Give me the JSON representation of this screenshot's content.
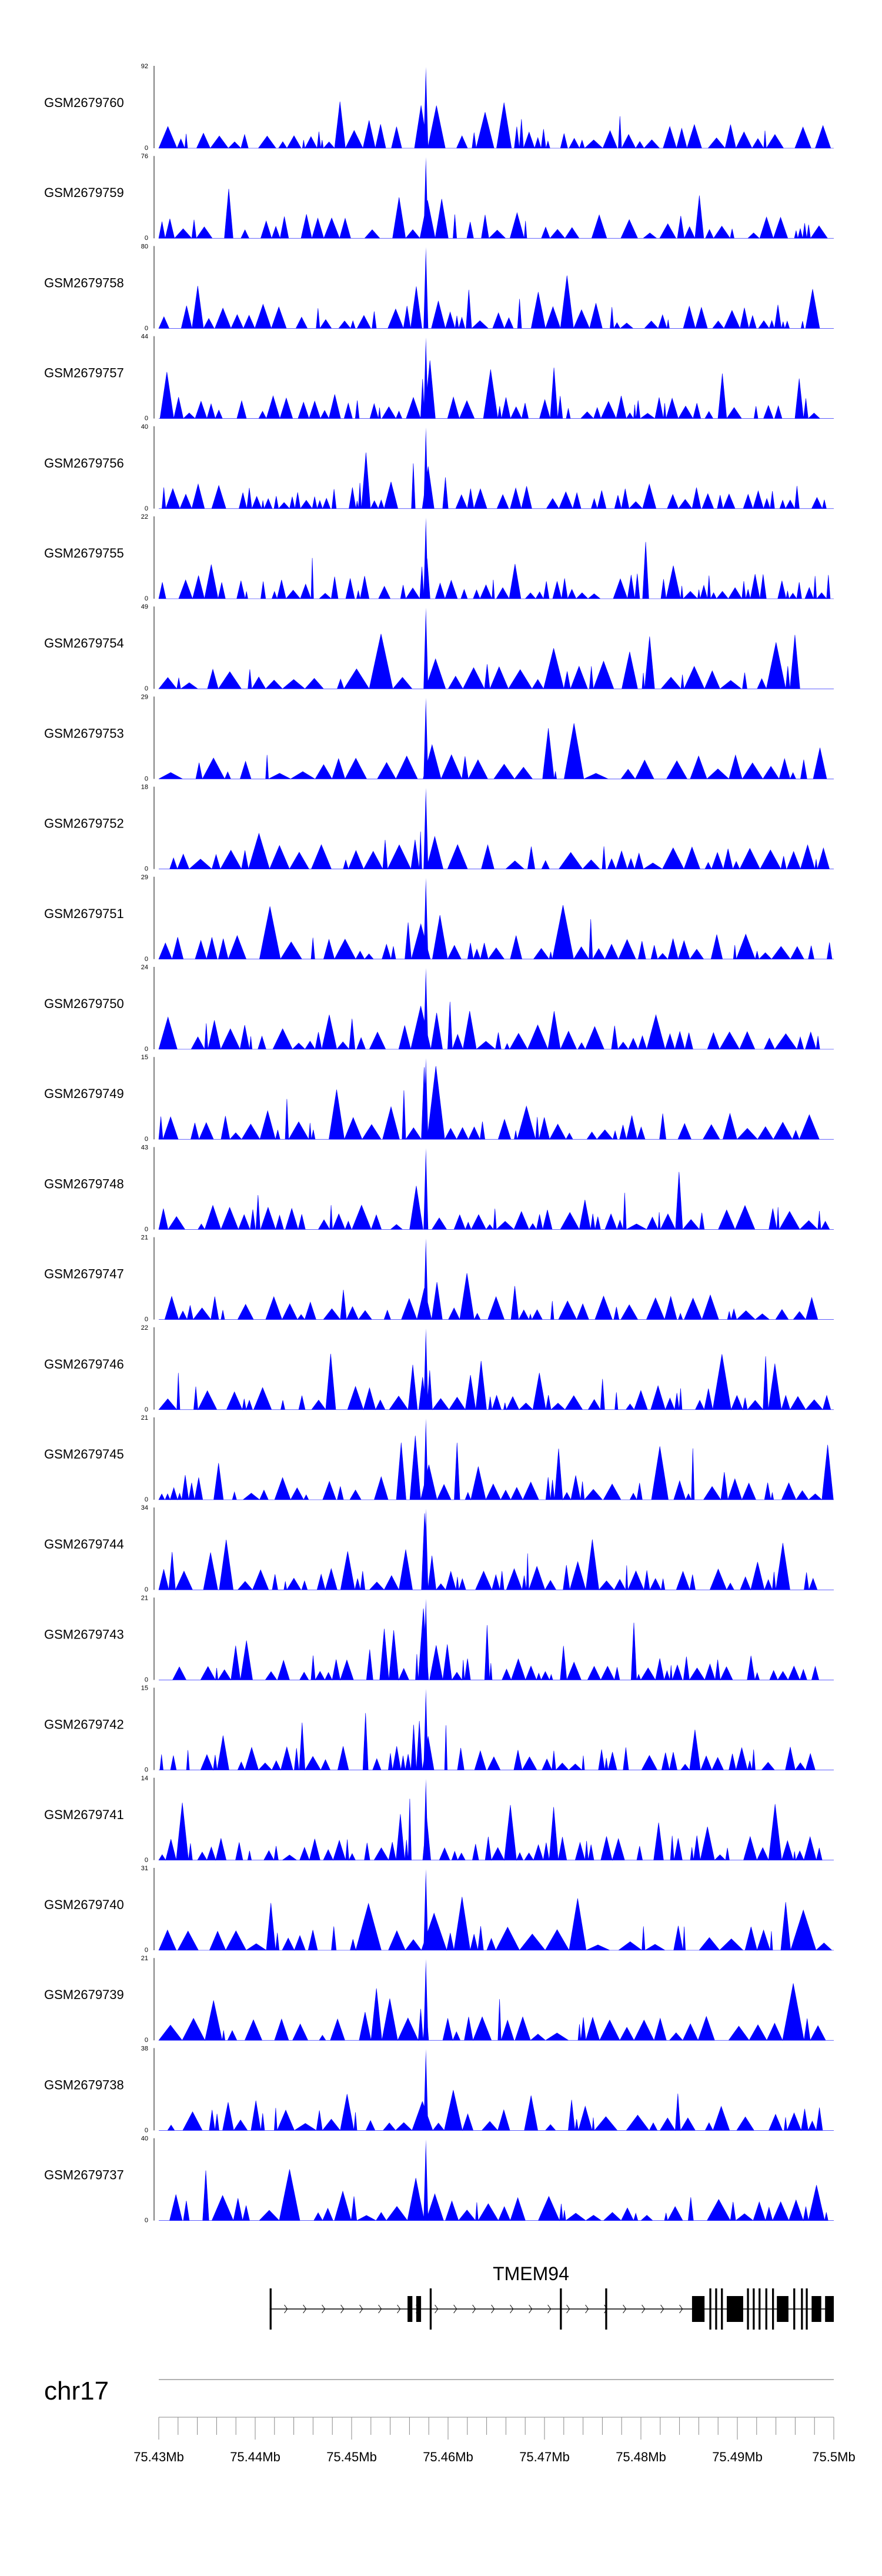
{
  "chart_data": {
    "type": "area",
    "title": "",
    "xlabel": "",
    "ylabel": "",
    "color": "#0000ff",
    "genome": {
      "chromosome": "chr17",
      "xlim_mb": [
        75.43,
        75.5
      ],
      "x_tick_labels": [
        "75.43Mb",
        "75.44Mb",
        "75.45Mb",
        "75.46Mb",
        "75.47Mb",
        "75.48Mb",
        "75.49Mb",
        "75.5Mb"
      ]
    },
    "gene": {
      "name": "TMEM94",
      "start_mb": 75.4415,
      "end_mb": 75.5,
      "strand": "+",
      "exons_mb": [
        [
          75.4415,
          75.4417
        ],
        [
          75.4558,
          75.4563
        ],
        [
          75.4567,
          75.4572
        ],
        [
          75.4581,
          75.4583
        ],
        [
          75.4716,
          75.4718
        ],
        [
          75.4763,
          75.4765
        ],
        [
          75.4853,
          75.4866
        ],
        [
          75.4871,
          75.4873
        ],
        [
          75.4877,
          75.4879
        ],
        [
          75.4883,
          75.4885
        ],
        [
          75.4889,
          75.4906
        ],
        [
          75.491,
          75.4912
        ],
        [
          75.4916,
          75.4918
        ],
        [
          75.4922,
          75.4924
        ],
        [
          75.4929,
          75.4931
        ],
        [
          75.4936,
          75.4938
        ],
        [
          75.4941,
          75.4953
        ],
        [
          75.4958,
          75.496
        ],
        [
          75.4966,
          75.4968
        ],
        [
          75.4971,
          75.4973
        ],
        [
          75.4977,
          75.4987
        ],
        [
          75.4991,
          75.5
        ]
      ]
    },
    "series": [
      {
        "name": "GSM2679760",
        "ymax_label": "92",
        "ymin_label": "0",
        "ymax": 92
      },
      {
        "name": "GSM2679759",
        "ymax_label": "76",
        "ymin_label": "0",
        "ymax": 76
      },
      {
        "name": "GSM2679758",
        "ymax_label": "80",
        "ymin_label": "0",
        "ymax": 80
      },
      {
        "name": "GSM2679757",
        "ymax_label": "44",
        "ymin_label": "0",
        "ymax": 44
      },
      {
        "name": "GSM2679756",
        "ymax_label": "40",
        "ymin_label": "0",
        "ymax": 40
      },
      {
        "name": "GSM2679755",
        "ymax_label": "22",
        "ymin_label": "0",
        "ymax": 22
      },
      {
        "name": "GSM2679754",
        "ymax_label": "49",
        "ymin_label": "0",
        "ymax": 49
      },
      {
        "name": "GSM2679753",
        "ymax_label": "29",
        "ymin_label": "0",
        "ymax": 29
      },
      {
        "name": "GSM2679752",
        "ymax_label": "18",
        "ymin_label": "0",
        "ymax": 18
      },
      {
        "name": "GSM2679751",
        "ymax_label": "29",
        "ymin_label": "0",
        "ymax": 29
      },
      {
        "name": "GSM2679750",
        "ymax_label": "24",
        "ymin_label": "0",
        "ymax": 24
      },
      {
        "name": "GSM2679749",
        "ymax_label": "15",
        "ymin_label": "0",
        "ymax": 15
      },
      {
        "name": "GSM2679748",
        "ymax_label": "43",
        "ymin_label": "0",
        "ymax": 43
      },
      {
        "name": "GSM2679747",
        "ymax_label": "21",
        "ymin_label": "0",
        "ymax": 21
      },
      {
        "name": "GSM2679746",
        "ymax_label": "22",
        "ymin_label": "0",
        "ymax": 22
      },
      {
        "name": "GSM2679745",
        "ymax_label": "21",
        "ymin_label": "0",
        "ymax": 21
      },
      {
        "name": "GSM2679744",
        "ymax_label": "34",
        "ymin_label": "0",
        "ymax": 34
      },
      {
        "name": "GSM2679743",
        "ymax_label": "21",
        "ymin_label": "0",
        "ymax": 21
      },
      {
        "name": "GSM2679742",
        "ymax_label": "15",
        "ymin_label": "0",
        "ymax": 15
      },
      {
        "name": "GSM2679741",
        "ymax_label": "14",
        "ymin_label": "0",
        "ymax": 14
      },
      {
        "name": "GSM2679740",
        "ymax_label": "31",
        "ymin_label": "0",
        "ymax": 31
      },
      {
        "name": "GSM2679739",
        "ymax_label": "21",
        "ymin_label": "0",
        "ymax": 21
      },
      {
        "name": "GSM2679738",
        "ymax_label": "38",
        "ymin_label": "0",
        "ymax": 38
      },
      {
        "name": "GSM2679737",
        "ymax_label": "40",
        "ymin_label": "0",
        "ymax": 40
      }
    ]
  }
}
